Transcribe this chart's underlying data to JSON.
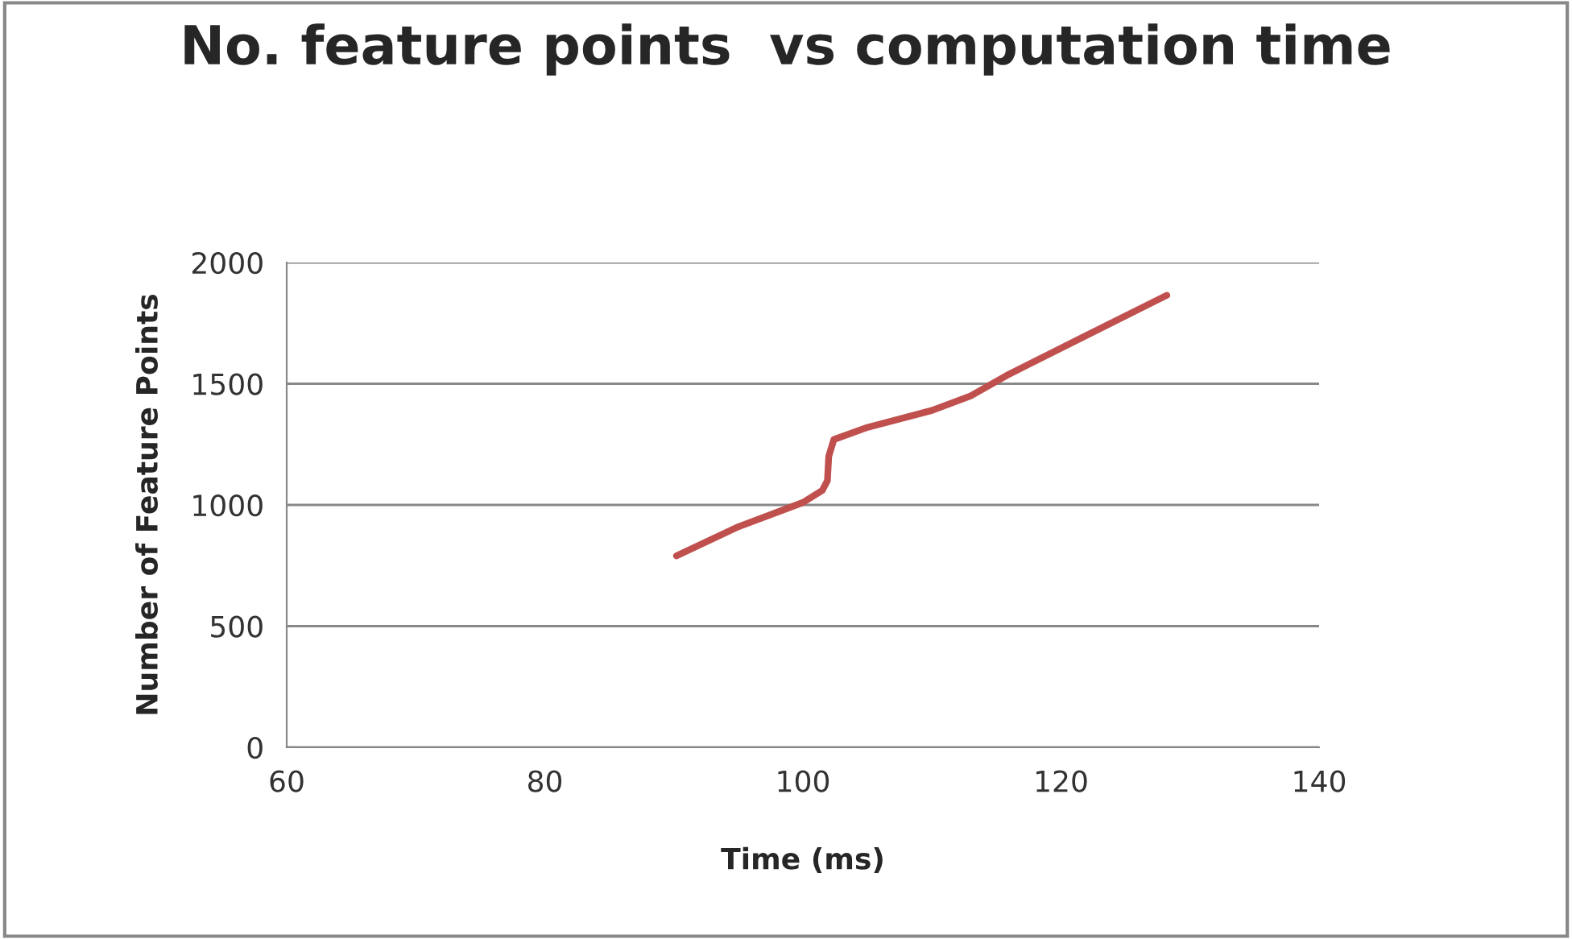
{
  "chart_data": {
    "type": "line",
    "title": "No. feature points  vs computation time",
    "xlabel": "Time (ms)",
    "ylabel": "Number of Feature Points",
    "x": [
      90.2,
      95,
      100,
      101.5,
      101.9,
      102,
      102.4,
      105,
      110,
      113,
      116,
      122,
      128.2
    ],
    "series": [
      {
        "color": "#c0504d",
        "values": [
          790,
          910,
          1010,
          1060,
          1100,
          1200,
          1270,
          1320,
          1390,
          1450,
          1540,
          1700,
          1865
        ]
      }
    ],
    "xlim": [
      60,
      140
    ],
    "xticks": [
      60,
      80,
      100,
      120,
      140
    ],
    "ylim": [
      0,
      2000
    ],
    "yticks": [
      0,
      500,
      1000,
      1500,
      2000
    ],
    "grid": "y",
    "legend": false,
    "marker": "none",
    "line_style": "solid"
  }
}
